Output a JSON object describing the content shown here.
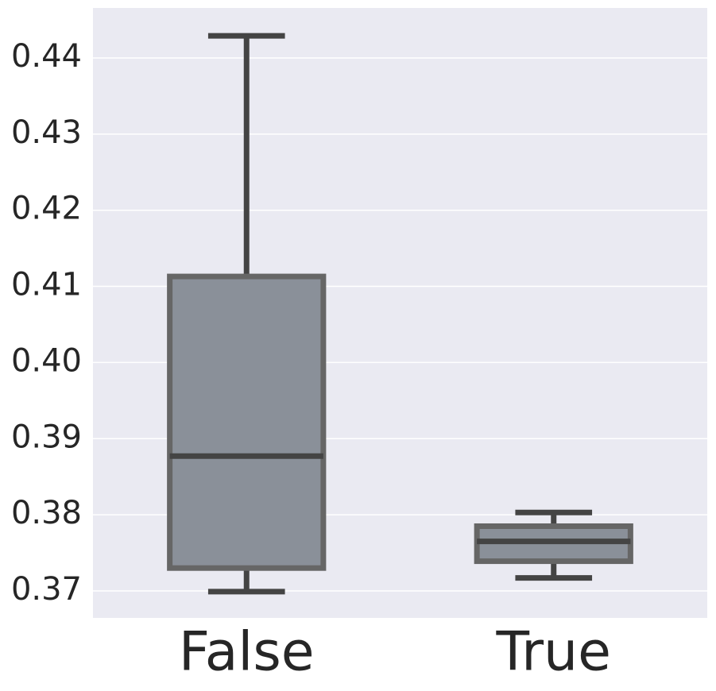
{
  "chart_data": {
    "type": "box",
    "categories": [
      "False",
      "True"
    ],
    "boxes": [
      {
        "whislo": 0.3699,
        "q1": 0.373,
        "med": 0.3877,
        "q3": 0.4113,
        "whishi": 0.4429
      },
      {
        "whislo": 0.3717,
        "q1": 0.3739,
        "med": 0.3765,
        "q3": 0.3785,
        "whishi": 0.3803
      }
    ],
    "color": "#8a9099",
    "ylim": [
      0.36645,
      0.44657
    ],
    "yticks": [
      0.37,
      0.38,
      0.39,
      {
        "value": 0.4,
        "label": "0.40"
      },
      0.41,
      0.42,
      0.43,
      0.44
    ],
    "grid": true
  }
}
